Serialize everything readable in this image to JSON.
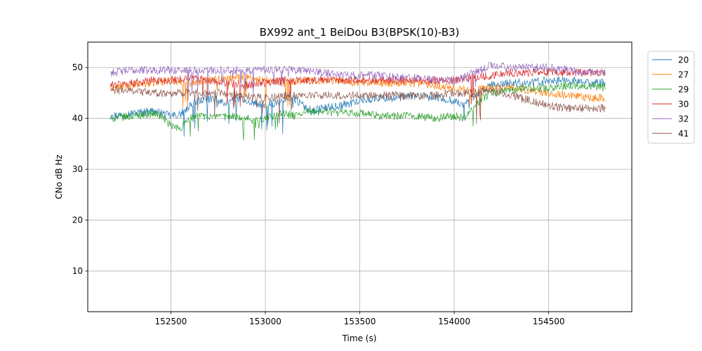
{
  "chart_data": {
    "type": "line",
    "title": "BX992 ant_1 BeiDou B3(BPSK(10)-B3)",
    "xlabel": "Time (s)",
    "ylabel": "CNo dB Hz",
    "xlim": [
      152060,
      154940
    ],
    "ylim": [
      2,
      55
    ],
    "xticks": [
      152500,
      153000,
      153500,
      154000,
      154500
    ],
    "yticks": [
      10,
      20,
      30,
      40,
      50
    ],
    "grid": true,
    "legend_position": "upper-right-outside",
    "series": [
      {
        "name": "20",
        "color": "#1f77b4",
        "x": [
          152180,
          152300,
          152400,
          152500,
          152550,
          152600,
          152650,
          152700,
          152750,
          152800,
          152850,
          152900,
          152950,
          153000,
          153050,
          153100,
          153150,
          153200,
          153250,
          153300,
          153400,
          153500,
          153600,
          153700,
          153800,
          153900,
          154000,
          154050,
          154100,
          154150,
          154200,
          154300,
          154400,
          154500,
          154600,
          154700,
          154800
        ],
        "y": [
          40.5,
          41.0,
          41.5,
          40.5,
          40.8,
          42.5,
          43.5,
          44.0,
          43.5,
          43.0,
          44.0,
          43.5,
          43.0,
          42.5,
          43.0,
          43.5,
          44.0,
          42.5,
          41.5,
          42.0,
          42.5,
          43.5,
          44.0,
          44.0,
          44.5,
          44.0,
          43.5,
          42.5,
          44.5,
          45.5,
          46.5,
          47.0,
          47.0,
          47.5,
          47.5,
          47.0,
          47.0
        ]
      },
      {
        "name": "27",
        "color": "#ff7f0e",
        "x": [
          152180,
          152300,
          152400,
          152500,
          152600,
          152700,
          152800,
          152900,
          153000,
          153100,
          153200,
          153300,
          153400,
          153500,
          153600,
          153700,
          153800,
          153900,
          154000,
          154100,
          154200,
          154300,
          154400,
          154500,
          154600,
          154700,
          154800
        ],
        "y": [
          46.0,
          46.5,
          47.0,
          47.5,
          47.0,
          47.5,
          48.0,
          48.0,
          47.5,
          47.0,
          47.5,
          47.5,
          47.5,
          47.0,
          47.0,
          47.0,
          47.0,
          46.5,
          46.0,
          45.5,
          46.0,
          46.0,
          45.5,
          45.0,
          44.5,
          44.0,
          44.0
        ]
      },
      {
        "name": "29",
        "color": "#2ca02c",
        "x": [
          152180,
          152300,
          152400,
          152450,
          152500,
          152550,
          152600,
          152650,
          152700,
          152750,
          152800,
          152850,
          152900,
          152950,
          153000,
          153050,
          153100,
          153150,
          153200,
          153300,
          153400,
          153500,
          153600,
          153700,
          153800,
          153900,
          154000,
          154050,
          154100,
          154150,
          154200,
          154300,
          154400,
          154500,
          154600,
          154700,
          154800
        ],
        "y": [
          40.0,
          40.5,
          41.0,
          40.5,
          38.5,
          38.0,
          40.0,
          40.5,
          40.5,
          40.0,
          40.5,
          40.5,
          40.0,
          39.5,
          40.0,
          40.5,
          41.0,
          40.5,
          41.0,
          41.5,
          41.0,
          41.0,
          40.5,
          40.5,
          40.5,
          40.0,
          40.5,
          40.0,
          42.0,
          44.0,
          45.0,
          45.5,
          46.0,
          46.0,
          46.5,
          46.5,
          46.0
        ]
      },
      {
        "name": "30",
        "color": "#d62728",
        "x": [
          152180,
          152300,
          152400,
          152500,
          152600,
          152700,
          152800,
          152900,
          153000,
          153100,
          153200,
          153300,
          153400,
          153500,
          153600,
          153700,
          153800,
          153900,
          154000,
          154100,
          154200,
          154300,
          154400,
          154500,
          154600,
          154700,
          154800
        ],
        "y": [
          46.5,
          47.0,
          47.5,
          47.5,
          48.0,
          47.5,
          47.0,
          46.5,
          47.0,
          47.5,
          47.5,
          47.5,
          47.5,
          47.5,
          47.5,
          47.5,
          47.5,
          47.5,
          47.5,
          48.0,
          48.5,
          49.0,
          49.0,
          49.0,
          49.0,
          49.0,
          49.0
        ]
      },
      {
        "name": "32",
        "color": "#9467bd",
        "x": [
          152180,
          152300,
          152400,
          152500,
          152600,
          152700,
          152800,
          152900,
          153000,
          153100,
          153200,
          153300,
          153400,
          153500,
          153600,
          153700,
          153800,
          153900,
          154000,
          154100,
          154200,
          154300,
          154400,
          154500,
          154600,
          154700,
          154800
        ],
        "y": [
          49.0,
          49.5,
          49.5,
          49.5,
          49.5,
          49.5,
          49.5,
          49.5,
          49.5,
          49.5,
          49.5,
          49.0,
          48.5,
          48.5,
          48.5,
          48.0,
          48.0,
          47.5,
          47.5,
          49.0,
          50.5,
          50.0,
          50.0,
          50.0,
          49.5,
          49.0,
          49.0
        ]
      },
      {
        "name": "41",
        "color": "#8c564b",
        "x": [
          152180,
          152300,
          152400,
          152500,
          152600,
          152700,
          152800,
          152900,
          153000,
          153100,
          153200,
          153300,
          153400,
          153500,
          153600,
          153700,
          153800,
          153900,
          154000,
          154100,
          154200,
          154300,
          154400,
          154500,
          154600,
          154700,
          154800
        ],
        "y": [
          45.5,
          45.5,
          45.0,
          45.0,
          45.0,
          45.0,
          45.0,
          44.5,
          44.0,
          44.5,
          44.5,
          44.5,
          44.5,
          44.5,
          44.5,
          44.5,
          44.5,
          44.5,
          45.0,
          45.0,
          45.5,
          44.5,
          43.5,
          42.5,
          42.0,
          42.0,
          42.0
        ]
      }
    ]
  }
}
